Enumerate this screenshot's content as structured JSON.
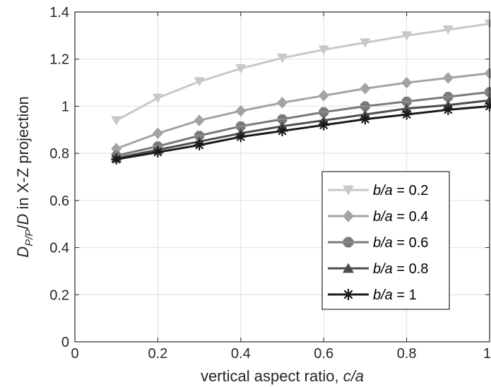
{
  "chart_data": {
    "type": "line",
    "xlabel": "vertical aspect ratio, c/a",
    "xlabel_parts": {
      "prefix": "vertical aspect ratio, ",
      "var": "c/a"
    },
    "ylabel_parts": {
      "d1": "D",
      "sub": "P/P",
      "slash": "/",
      "d2": "D",
      "rest": " in X-Z projection"
    },
    "xlim": [
      0,
      1
    ],
    "ylim": [
      0,
      1.4
    ],
    "xticks": [
      0,
      0.2,
      0.4,
      0.6,
      0.8,
      1
    ],
    "xtick_labels": [
      "0",
      "0.2",
      "0.4",
      "0.6",
      "0.8",
      "1"
    ],
    "yticks": [
      0,
      0.2,
      0.4,
      0.6,
      0.8,
      1,
      1.2,
      1.4
    ],
    "ytick_labels": [
      "0",
      "0.2",
      "0.4",
      "0.6",
      "0.8",
      "1",
      "1.2",
      "1.4"
    ],
    "grid": true,
    "legend_position": "lower-right",
    "x": [
      0.1,
      0.2,
      0.3,
      0.4,
      0.5,
      0.6,
      0.7,
      0.8,
      0.9,
      1.0
    ],
    "series": [
      {
        "name_var": "b/a",
        "name_value": " = 0.2",
        "marker": "triangle-down",
        "color": "#c8c8c8",
        "values": [
          0.94,
          1.035,
          1.105,
          1.16,
          1.205,
          1.24,
          1.27,
          1.3,
          1.325,
          1.35
        ]
      },
      {
        "name_var": "b/a",
        "name_value": " = 0.4",
        "marker": "diamond",
        "color": "#a3a3a3",
        "values": [
          0.82,
          0.885,
          0.94,
          0.98,
          1.015,
          1.045,
          1.075,
          1.1,
          1.12,
          1.14
        ]
      },
      {
        "name_var": "b/a",
        "name_value": " = 0.6",
        "marker": "octagon",
        "color": "#7a7a7a",
        "values": [
          0.79,
          0.83,
          0.875,
          0.915,
          0.945,
          0.975,
          1.0,
          1.02,
          1.04,
          1.06
        ]
      },
      {
        "name_var": "b/a",
        "name_value": " = 0.8",
        "marker": "triangle-up",
        "color": "#4d4d4d",
        "values": [
          0.78,
          0.815,
          0.85,
          0.885,
          0.915,
          0.94,
          0.965,
          0.99,
          1.005,
          1.025
        ]
      },
      {
        "name_var": "b/a",
        "name_value": " = 1",
        "marker": "asterisk",
        "color": "#1a1a1a",
        "values": [
          0.775,
          0.805,
          0.835,
          0.87,
          0.895,
          0.92,
          0.945,
          0.965,
          0.985,
          1.0
        ]
      }
    ]
  }
}
